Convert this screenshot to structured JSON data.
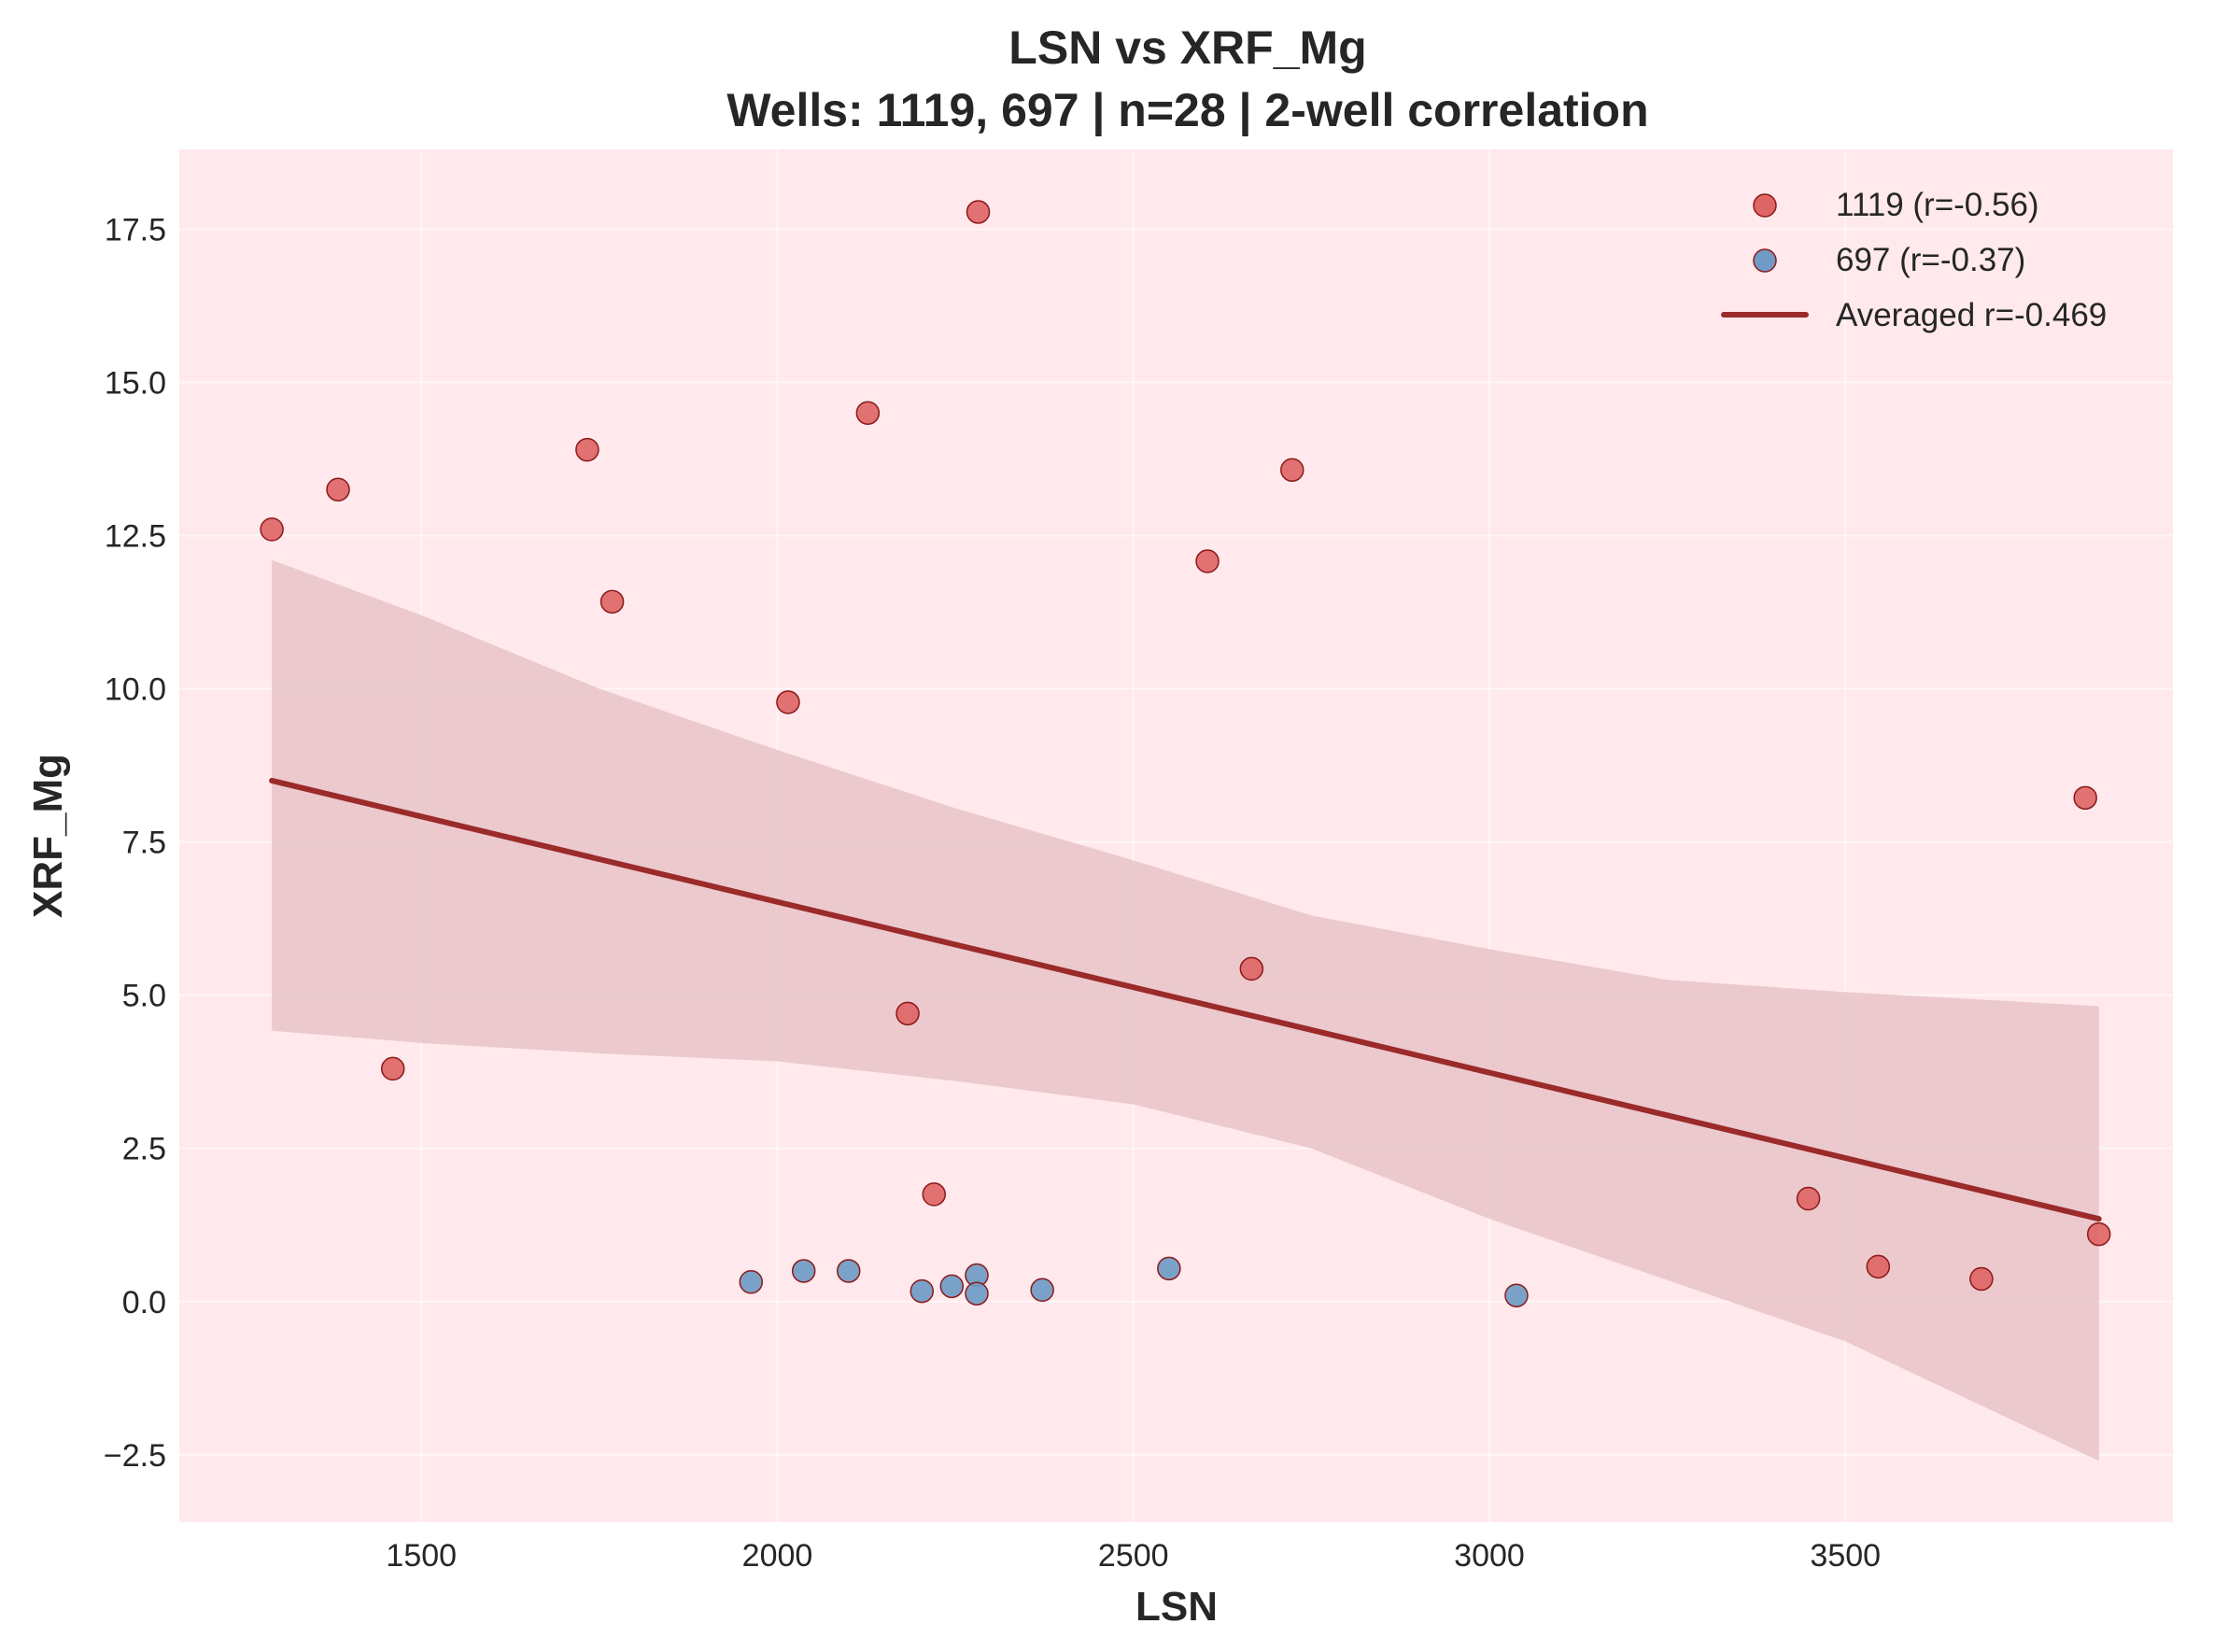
{
  "chart_data": {
    "type": "scatter",
    "title": "LSN vs XRF_Mg",
    "subtitle": "Wells: 1119, 697 | n=28 | 2-well correlation",
    "xlabel": "LSN",
    "ylabel": "XRF_Mg",
    "xlim": [
      1160,
      3960
    ],
    "ylim": [
      -3.6,
      18.8
    ],
    "xticks": [
      1500,
      2000,
      2500,
      3000,
      3500
    ],
    "xtick_labels": [
      "1500",
      "2000",
      "2500",
      "3000",
      "3500"
    ],
    "yticks": [
      -2.5,
      0.0,
      2.5,
      5.0,
      7.5,
      10.0,
      12.5,
      15.0,
      17.5
    ],
    "ytick_labels": [
      "−2.5",
      "0.0",
      "2.5",
      "5.0",
      "7.5",
      "10.0",
      "12.5",
      "15.0",
      "17.5"
    ],
    "grid": true,
    "legend_position": "top-right",
    "colors": {
      "background": "#ffe9ec",
      "well_1119": "#e06666",
      "well_697": "#6f9bc6",
      "marker_edge": "#8b1a1a",
      "trend": "#9b2a2a",
      "band": "#e8c3c8"
    },
    "series": [
      {
        "name": "1119 (r=-0.56)",
        "color": "#e06666",
        "points": [
          {
            "x": 1290,
            "y": 12.6
          },
          {
            "x": 1383,
            "y": 13.25
          },
          {
            "x": 1460,
            "y": 3.8
          },
          {
            "x": 1733,
            "y": 13.9
          },
          {
            "x": 1768,
            "y": 11.42
          },
          {
            "x": 2015,
            "y": 9.78
          },
          {
            "x": 2127,
            "y": 14.5
          },
          {
            "x": 2183,
            "y": 4.7
          },
          {
            "x": 2220,
            "y": 1.75
          },
          {
            "x": 2282,
            "y": 17.78
          },
          {
            "x": 2604,
            "y": 12.08
          },
          {
            "x": 2666,
            "y": 5.43
          },
          {
            "x": 2723,
            "y": 13.57
          },
          {
            "x": 3448,
            "y": 1.68
          },
          {
            "x": 3546,
            "y": 0.57
          },
          {
            "x": 3691,
            "y": 0.37
          },
          {
            "x": 3837,
            "y": 8.22
          },
          {
            "x": 3856,
            "y": 1.1
          }
        ]
      },
      {
        "name": "697 (r=-0.37)",
        "color": "#6f9bc6",
        "points": [
          {
            "x": 1963,
            "y": 0.32
          },
          {
            "x": 2037,
            "y": 0.5
          },
          {
            "x": 2100,
            "y": 0.5
          },
          {
            "x": 2203,
            "y": 0.17
          },
          {
            "x": 2245,
            "y": 0.25
          },
          {
            "x": 2280,
            "y": 0.43
          },
          {
            "x": 2280,
            "y": 0.13
          },
          {
            "x": 2372,
            "y": 0.19
          },
          {
            "x": 2550,
            "y": 0.54
          },
          {
            "x": 3038,
            "y": 0.1
          }
        ]
      }
    ],
    "trend": {
      "name": "Averaged r=-0.469",
      "x": [
        1290,
        3856
      ],
      "y": [
        8.5,
        1.35
      ]
    },
    "confidence_band": {
      "x": [
        1290,
        1500,
        1750,
        2000,
        2250,
        2500,
        2750,
        3000,
        3250,
        3500,
        3856
      ],
      "upper": [
        12.1,
        11.2,
        10.0,
        9.0,
        8.05,
        7.2,
        6.3,
        5.75,
        5.25,
        5.05,
        4.82
      ],
      "lower": [
        4.42,
        4.22,
        4.05,
        3.92,
        3.6,
        3.22,
        2.5,
        1.35,
        0.35,
        -0.65,
        -2.6
      ]
    }
  }
}
